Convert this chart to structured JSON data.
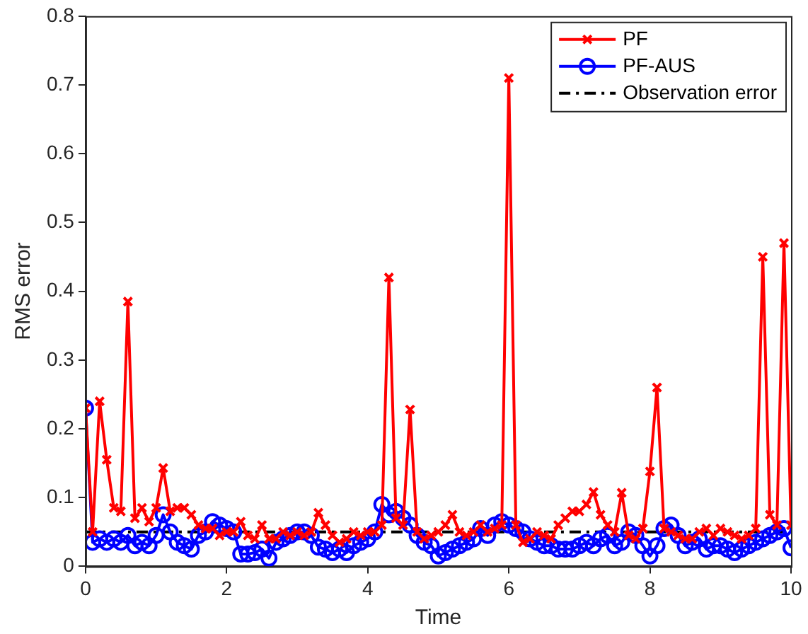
{
  "chart_data": {
    "type": "line",
    "xlabel": "Time",
    "ylabel": "RMS error",
    "xlim": [
      0,
      10
    ],
    "xticks": [
      0,
      2,
      4,
      6,
      8,
      10
    ],
    "ylim": [
      0,
      0.8
    ],
    "yticks": [
      0,
      0.1,
      0.2,
      0.3,
      0.4,
      0.5,
      0.6,
      0.7,
      0.8
    ],
    "grid": false,
    "legend": "top right",
    "line_style": "solid",
    "x": [
      0,
      0.1,
      0.2,
      0.3,
      0.4,
      0.5,
      0.6,
      0.7,
      0.8,
      0.9,
      1,
      1.1,
      1.2,
      1.3,
      1.4,
      1.5,
      1.6,
      1.7,
      1.8,
      1.9,
      2,
      2.1,
      2.2,
      2.3,
      2.4,
      2.5,
      2.6,
      2.7,
      2.8,
      2.9,
      3,
      3.1,
      3.2,
      3.3,
      3.4,
      3.5,
      3.6,
      3.7,
      3.8,
      3.9,
      4,
      4.1,
      4.2,
      4.3,
      4.4,
      4.5,
      4.6,
      4.7,
      4.8,
      4.9,
      5,
      5.1,
      5.2,
      5.3,
      5.4,
      5.5,
      5.6,
      5.7,
      5.8,
      5.9,
      6,
      6.1,
      6.2,
      6.3,
      6.4,
      6.5,
      6.6,
      6.7,
      6.8,
      6.9,
      7,
      7.1,
      7.2,
      7.3,
      7.4,
      7.5,
      7.6,
      7.7,
      7.8,
      7.9,
      8,
      8.1,
      8.2,
      8.3,
      8.4,
      8.5,
      8.6,
      8.7,
      8.8,
      8.9,
      9,
      9.1,
      9.2,
      9.3,
      9.4,
      9.5,
      9.6,
      9.7,
      9.8,
      9.9,
      10
    ],
    "series": [
      {
        "name": "PF",
        "color": "#ff0000",
        "marker": "cross",
        "values": [
          0.23,
          0.05,
          0.24,
          0.155,
          0.085,
          0.08,
          0.385,
          0.07,
          0.085,
          0.065,
          0.085,
          0.143,
          0.08,
          0.085,
          0.085,
          0.075,
          0.06,
          0.055,
          0.055,
          0.045,
          0.05,
          0.05,
          0.065,
          0.045,
          0.04,
          0.06,
          0.04,
          0.04,
          0.05,
          0.045,
          0.05,
          0.045,
          0.05,
          0.078,
          0.06,
          0.045,
          0.035,
          0.04,
          0.05,
          0.045,
          0.05,
          0.05,
          0.06,
          0.42,
          0.07,
          0.06,
          0.228,
          0.05,
          0.04,
          0.045,
          0.05,
          0.06,
          0.075,
          0.05,
          0.045,
          0.05,
          0.06,
          0.05,
          0.055,
          0.06,
          0.71,
          0.06,
          0.035,
          0.04,
          0.05,
          0.045,
          0.04,
          0.06,
          0.07,
          0.08,
          0.08,
          0.09,
          0.108,
          0.075,
          0.06,
          0.05,
          0.107,
          0.045,
          0.04,
          0.055,
          0.138,
          0.26,
          0.055,
          0.05,
          0.045,
          0.04,
          0.04,
          0.05,
          0.055,
          0.045,
          0.055,
          0.05,
          0.045,
          0.04,
          0.045,
          0.055,
          0.45,
          0.075,
          0.06,
          0.47,
          0.06
        ]
      },
      {
        "name": "PF-AUS",
        "color": "#0000ff",
        "marker": "circle",
        "values": [
          0.23,
          0.035,
          0.04,
          0.035,
          0.04,
          0.035,
          0.045,
          0.03,
          0.035,
          0.03,
          0.045,
          0.075,
          0.05,
          0.035,
          0.03,
          0.025,
          0.045,
          0.05,
          0.065,
          0.06,
          0.055,
          0.05,
          0.018,
          0.018,
          0.02,
          0.025,
          0.012,
          0.035,
          0.04,
          0.045,
          0.05,
          0.05,
          0.045,
          0.028,
          0.025,
          0.02,
          0.025,
          0.02,
          0.03,
          0.035,
          0.04,
          0.05,
          0.09,
          0.075,
          0.08,
          0.07,
          0.06,
          0.045,
          0.035,
          0.03,
          0.015,
          0.02,
          0.025,
          0.03,
          0.035,
          0.04,
          0.055,
          0.045,
          0.06,
          0.065,
          0.06,
          0.055,
          0.05,
          0.04,
          0.035,
          0.03,
          0.03,
          0.025,
          0.025,
          0.025,
          0.03,
          0.035,
          0.03,
          0.04,
          0.045,
          0.03,
          0.035,
          0.05,
          0.045,
          0.03,
          0.015,
          0.03,
          0.055,
          0.06,
          0.045,
          0.03,
          0.035,
          0.04,
          0.025,
          0.03,
          0.03,
          0.025,
          0.02,
          0.025,
          0.03,
          0.035,
          0.04,
          0.045,
          0.05,
          0.055,
          0.027
        ]
      }
    ],
    "ref_lines": [
      {
        "axis": "y",
        "value": 0.05,
        "label": "Observation error",
        "color": "#000000",
        "line_style": "dashed"
      }
    ]
  }
}
